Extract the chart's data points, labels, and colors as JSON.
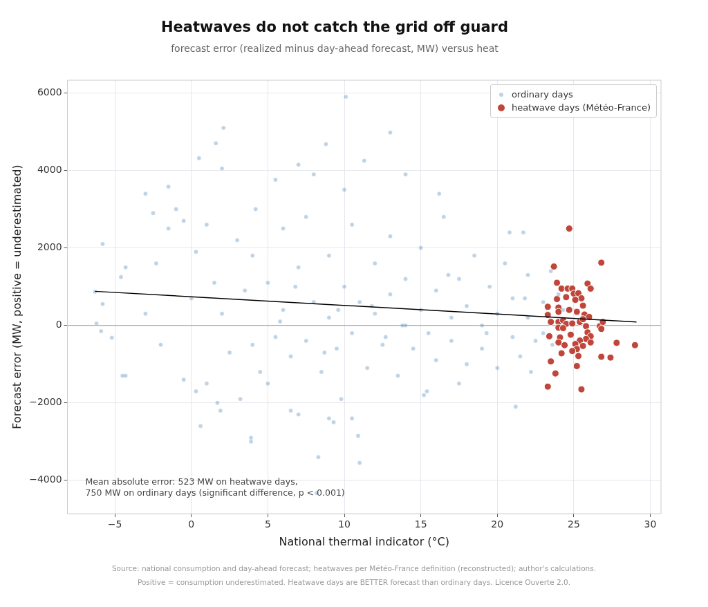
{
  "chart_data": {
    "type": "scatter",
    "title": "Heatwaves do not catch the grid off guard",
    "subtitle": "forecast error (realized minus day-ahead forecast, MW) versus heat",
    "xlabel": "National thermal indicator (°C)",
    "ylabel": "Forecast error (MW, positive = underestimated)",
    "xlim": [
      -8.1,
      30.7
    ],
    "xticks": [
      {
        "value": -5,
        "label": "−5"
      },
      0,
      5,
      10,
      15,
      20,
      25,
      30
    ],
    "ylim": [
      -4860,
      6330
    ],
    "yticks": [
      {
        "value": -4000,
        "label": "−4000"
      },
      {
        "value": -2000,
        "label": "−2000"
      },
      0,
      2000,
      4000,
      6000
    ],
    "grid": true,
    "legend": "top right",
    "marker": "circle",
    "ref_lines": [
      {
        "axis": "y",
        "value": 0,
        "color": "#aaaaaa"
      }
    ],
    "annotations": [
      "Mean absolute error: 523 MW on heatwave days,\n750 MW on ordinary days (significant difference, p < 0.001)",
      "Source: national consumption and day-ahead forecast; heatwaves per Météo-France definition (reconstructed); author's calculations.",
      "Positive = consumption underestimated. Heatwave days are BETTER forecast than ordinary days. Licence Ouverte 2.0."
    ],
    "series": [
      {
        "name": "ordinary days",
        "color": "#4682b4",
        "x": [
          10.1,
          2.1,
          1.6,
          13,
          8.8,
          0.5,
          2,
          7,
          11.3,
          14,
          -1.5,
          5.5,
          -2.5,
          -3,
          4.2,
          8,
          10,
          16.2,
          20.8,
          21.7,
          -5.8,
          -6.3,
          -6.2,
          -5.8,
          -5.9,
          -4.3,
          -4.6,
          -5.2,
          -4.3,
          -4.5,
          -3,
          -2,
          -2.3,
          -1.5,
          -0.5,
          -0.5,
          0.3,
          0.6,
          1,
          1.7,
          1.9,
          3.2,
          3.9,
          3.9,
          5,
          6.5,
          7,
          8.3,
          8.2,
          9,
          9.3,
          10.5,
          10.9,
          11,
          9.8,
          15.2,
          21.2,
          15.4,
          17.5,
          22.2,
          0,
          0.3,
          1,
          -1,
          2.5,
          3,
          4,
          4.5,
          5,
          5.5,
          6,
          6,
          6.5,
          7,
          7.5,
          7.5,
          8,
          8.5,
          9,
          9,
          9.5,
          10,
          10.5,
          10.5,
          11,
          11.5,
          12,
          12,
          12.5,
          13,
          13,
          13.5,
          14,
          14,
          14.5,
          15,
          15,
          15.5,
          16,
          16,
          16.5,
          17,
          17,
          17.5,
          18,
          18,
          18.5,
          19,
          19,
          19.5,
          20,
          20,
          20.5,
          21,
          21,
          21.5,
          22,
          22,
          22.5,
          23,
          23,
          23.5,
          24,
          23.6,
          2,
          3.5,
          4,
          1.5,
          5.8,
          24.3,
          6.8,
          8.7,
          11.8,
          13.8,
          16.8,
          19.3,
          21.8,
          9.6,
          12.7
        ],
        "values": [
          5900,
          5100,
          4700,
          4980,
          4680,
          4320,
          4050,
          4150,
          4250,
          3900,
          3580,
          3760,
          2900,
          3400,
          3000,
          3900,
          3500,
          3400,
          2400,
          2400,
          2100,
          870,
          50,
          550,
          -150,
          1500,
          1250,
          -320,
          -1300,
          -1300,
          300,
          -500,
          1600,
          2500,
          2700,
          -1400,
          -1700,
          -2600,
          -1500,
          -2000,
          -2200,
          -1900,
          -2900,
          -3000,
          -1500,
          -2200,
          -2300,
          -3400,
          -4330,
          -2400,
          -2500,
          -2400,
          -2850,
          -3550,
          -1900,
          -1800,
          -2100,
          -1700,
          -1500,
          -1200,
          700,
          1900,
          2600,
          3000,
          -700,
          2200,
          1800,
          -1200,
          1100,
          -300,
          2500,
          400,
          -800,
          1500,
          -400,
          2800,
          600,
          -1200,
          1800,
          200,
          -600,
          1000,
          2600,
          -200,
          600,
          -1100,
          1600,
          300,
          -500,
          2300,
          800,
          -1300,
          0,
          1200,
          -600,
          2000,
          400,
          -200,
          900,
          -900,
          2800,
          200,
          -400,
          1200,
          -1000,
          500,
          1800,
          0,
          -600,
          1000,
          300,
          -1100,
          1600,
          -300,
          700,
          -800,
          200,
          1300,
          -400,
          600,
          -200,
          1400,
          800,
          -500,
          300,
          900,
          -500,
          1100,
          100,
          400,
          1000,
          -700,
          500,
          0,
          1300,
          -200,
          700,
          400,
          -300
        ]
      },
      {
        "name": "heatwave days (Météo-France)",
        "color": "#c0453a",
        "x": [
          24.7,
          26.8,
          23.7,
          23.9,
          24.2,
          24.6,
          24.9,
          25.0,
          25.3,
          25.5,
          25.1,
          24.5,
          23.9,
          25.9,
          26.1,
          25.6,
          23.3,
          24.0,
          24.7,
          24.0,
          25.2,
          25.7,
          26.0,
          23.3,
          23.5,
          24.0,
          24.3,
          24.5,
          24.9,
          25.4,
          25.6,
          25.8,
          24.0,
          24.3,
          26.7,
          26.9,
          26.8,
          25.9,
          24.8,
          26.1,
          23.4,
          25.8,
          24.1,
          24.0,
          25.4,
          25.1,
          26.1,
          24.4,
          25.6,
          25.2,
          24.9,
          24.2,
          27.8,
          29.0,
          25.3,
          26.8,
          27.4,
          23.5,
          25.2,
          23.8,
          23.3,
          25.5
        ],
        "values": [
          2500,
          1620,
          1520,
          1100,
          950,
          950,
          950,
          820,
          830,
          700,
          660,
          730,
          680,
          1080,
          950,
          510,
          480,
          460,
          400,
          350,
          350,
          280,
          220,
          270,
          90,
          90,
          130,
          40,
          50,
          90,
          160,
          -20,
          -60,
          -70,
          -20,
          90,
          -90,
          -180,
          -240,
          -280,
          -280,
          -350,
          -310,
          -440,
          -390,
          -480,
          -440,
          -510,
          -530,
          -610,
          -660,
          -720,
          -450,
          -510,
          -790,
          -810,
          -830,
          -930,
          -1050,
          -1240,
          -1580,
          -1650
        ]
      },
      {
        "type": "line",
        "marker": "none",
        "color": "#000000",
        "x": [
          -6.3,
          29.1
        ],
        "values": [
          880,
          90
        ]
      }
    ]
  }
}
